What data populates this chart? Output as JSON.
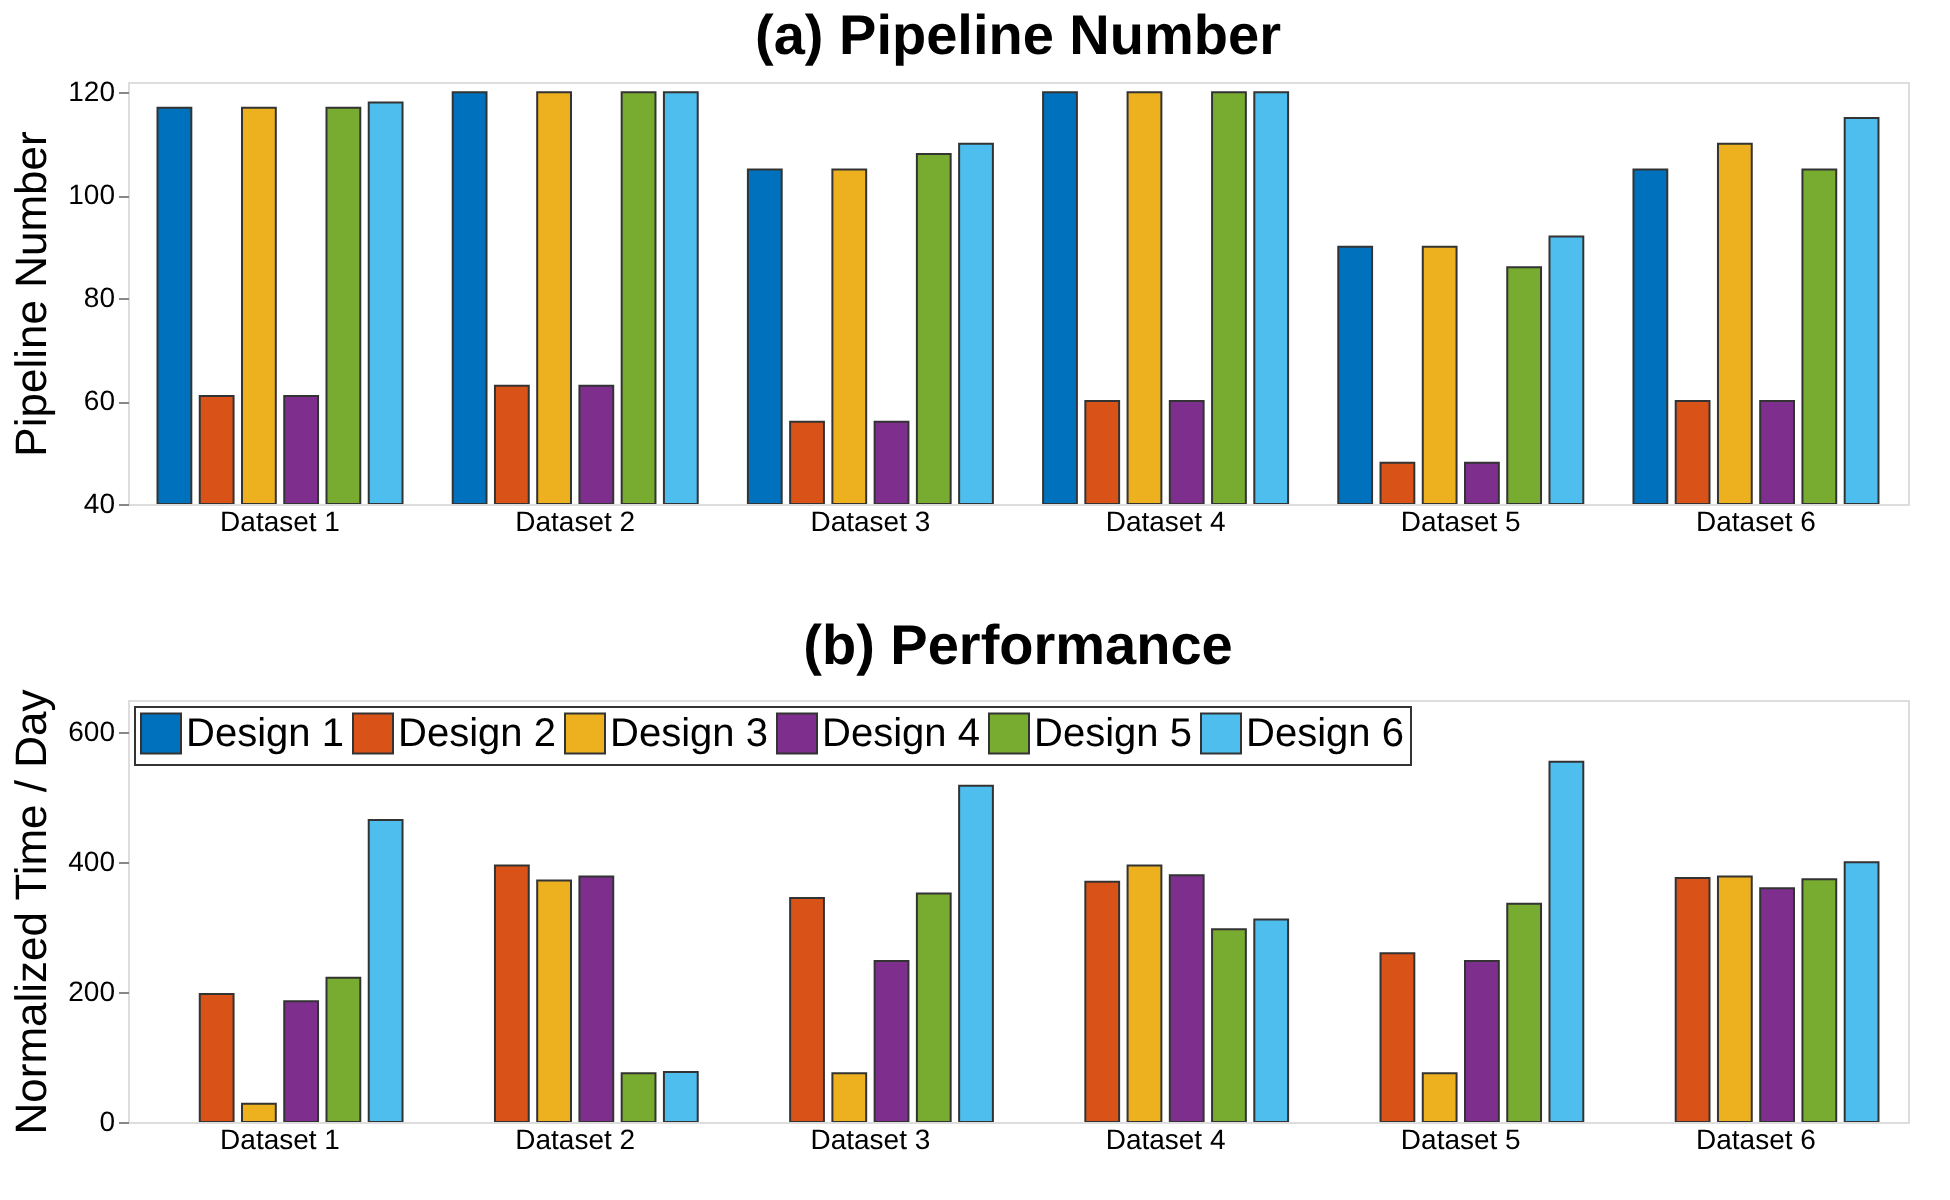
{
  "chart_data": [
    {
      "type": "bar",
      "title": "(a) Pipeline Number",
      "ylabel": "Pipeline Number",
      "categories": [
        "Dataset 1",
        "Dataset 2",
        "Dataset 3",
        "Dataset 4",
        "Dataset 5",
        "Dataset 6"
      ],
      "ylim": [
        40,
        122
      ],
      "yticks": [
        40,
        60,
        80,
        100,
        120
      ],
      "grid": false,
      "series": [
        {
          "color": "#0072bd",
          "values": [
            117,
            120,
            105,
            120,
            90,
            105
          ]
        },
        {
          "color": "#d95319",
          "values": [
            61,
            63,
            56,
            60,
            48,
            60
          ]
        },
        {
          "color": "#edb120",
          "values": [
            117,
            120,
            105,
            120,
            90,
            110
          ]
        },
        {
          "color": "#7e2f8e",
          "values": [
            61,
            63,
            56,
            60,
            48,
            60
          ]
        },
        {
          "color": "#77ac30",
          "values": [
            117,
            120,
            108,
            120,
            86,
            105
          ]
        },
        {
          "color": "#4dbeee",
          "values": [
            118,
            120,
            110,
            120,
            92,
            115
          ]
        }
      ]
    },
    {
      "type": "bar",
      "title": "(b) Performance",
      "ylabel": "Normalized Time / Day",
      "categories": [
        "Dataset 1",
        "Dataset 2",
        "Dataset 3",
        "Dataset 4",
        "Dataset 5",
        "Dataset 6"
      ],
      "ylim": [
        0,
        650
      ],
      "yticks": [
        0,
        200,
        400,
        600
      ],
      "grid": false,
      "legend": "top left",
      "series": [
        {
          "name": "Design 1",
          "color": "#0072bd",
          "values": [
            null,
            null,
            null,
            null,
            null,
            null
          ]
        },
        {
          "name": "Design 2",
          "color": "#d95319",
          "values": [
            197,
            395,
            345,
            370,
            260,
            376
          ]
        },
        {
          "name": "Design 3",
          "color": "#edb120",
          "values": [
            28,
            372,
            75,
            395,
            75,
            378
          ]
        },
        {
          "name": "Design 4",
          "color": "#7e2f8e",
          "values": [
            186,
            378,
            248,
            380,
            248,
            360
          ]
        },
        {
          "name": "Design 5",
          "color": "#77ac30",
          "values": [
            222,
            75,
            352,
            297,
            336,
            374
          ]
        },
        {
          "name": "Design 6",
          "color": "#4dbeee",
          "values": [
            465,
            77,
            518,
            312,
            555,
            400
          ]
        }
      ]
    }
  ]
}
